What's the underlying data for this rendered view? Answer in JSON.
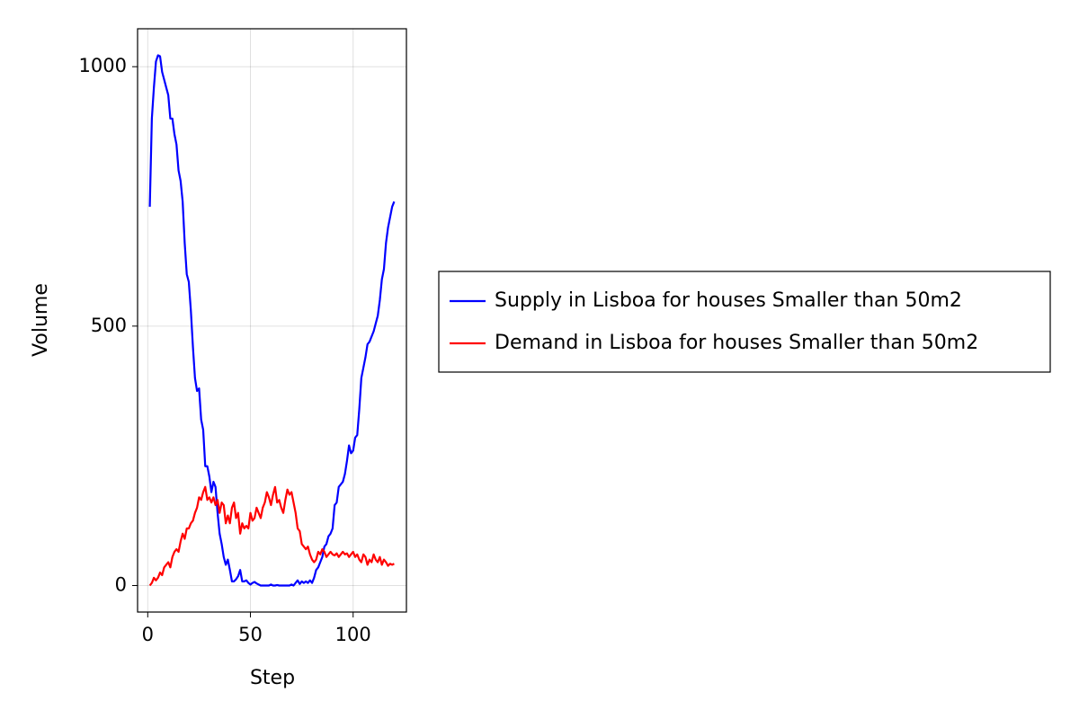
{
  "chart_data": {
    "type": "line",
    "x_label": "Step",
    "y_label": "Volume",
    "x": [
      1,
      2,
      3,
      4,
      5,
      6,
      7,
      8,
      9,
      10,
      11,
      12,
      13,
      14,
      15,
      16,
      17,
      18,
      19,
      20,
      21,
      22,
      23,
      24,
      25,
      26,
      27,
      28,
      29,
      30,
      31,
      32,
      33,
      34,
      35,
      36,
      37,
      38,
      39,
      40,
      41,
      42,
      43,
      44,
      45,
      46,
      47,
      48,
      49,
      50,
      51,
      52,
      53,
      54,
      55,
      56,
      57,
      58,
      59,
      60,
      61,
      62,
      63,
      64,
      65,
      66,
      67,
      68,
      69,
      70,
      71,
      72,
      73,
      74,
      75,
      76,
      77,
      78,
      79,
      80,
      81,
      82,
      83,
      84,
      85,
      86,
      87,
      88,
      89,
      90,
      91,
      92,
      93,
      94,
      95,
      96,
      97,
      98,
      99,
      100,
      101,
      102,
      103,
      104,
      105,
      106,
      107,
      108,
      109,
      110,
      111,
      112,
      113,
      114,
      115,
      116,
      117,
      118,
      119,
      120
    ],
    "series": [
      {
        "name": "Supply in Lisboa for houses Smaller than 50m2",
        "color": "#0000ff",
        "values": [
          730,
          900,
          960,
          1010,
          1022,
          1020,
          990,
          975,
          960,
          945,
          900,
          900,
          870,
          850,
          800,
          780,
          740,
          660,
          600,
          585,
          530,
          460,
          400,
          375,
          380,
          320,
          300,
          230,
          230,
          210,
          180,
          200,
          190,
          140,
          100,
          80,
          55,
          40,
          50,
          30,
          8,
          8,
          12,
          18,
          30,
          8,
          8,
          10,
          5,
          2,
          5,
          7,
          4,
          2,
          0,
          0,
          0,
          0,
          0,
          2,
          0,
          0,
          1,
          0,
          0,
          0,
          0,
          0,
          0,
          2,
          0,
          5,
          10,
          3,
          8,
          5,
          8,
          5,
          10,
          5,
          15,
          30,
          35,
          45,
          55,
          75,
          80,
          95,
          100,
          110,
          155,
          160,
          190,
          195,
          200,
          215,
          240,
          270,
          255,
          260,
          285,
          290,
          340,
          400,
          420,
          440,
          465,
          470,
          480,
          490,
          505,
          520,
          550,
          590,
          610,
          660,
          690,
          710,
          730,
          740
        ]
      },
      {
        "name": "Demand in Lisboa for houses Smaller than 50m2",
        "color": "#ff0000",
        "values": [
          0,
          5,
          15,
          10,
          15,
          25,
          20,
          35,
          40,
          45,
          35,
          55,
          65,
          70,
          65,
          85,
          100,
          90,
          110,
          110,
          120,
          125,
          140,
          150,
          170,
          165,
          180,
          190,
          165,
          170,
          160,
          170,
          155,
          165,
          140,
          160,
          155,
          120,
          135,
          120,
          150,
          160,
          130,
          140,
          100,
          120,
          110,
          115,
          110,
          140,
          125,
          130,
          150,
          140,
          130,
          150,
          160,
          180,
          170,
          155,
          175,
          190,
          160,
          165,
          150,
          140,
          165,
          185,
          175,
          180,
          160,
          140,
          110,
          105,
          80,
          75,
          70,
          75,
          60,
          50,
          45,
          50,
          65,
          60,
          70,
          65,
          55,
          60,
          65,
          60,
          58,
          62,
          55,
          60,
          65,
          60,
          62,
          55,
          60,
          65,
          55,
          60,
          50,
          45,
          60,
          55,
          40,
          50,
          45,
          60,
          50,
          45,
          55,
          40,
          50,
          45,
          38,
          42,
          40,
          42
        ]
      }
    ],
    "xlim": [
      -4.95,
      125.95
    ],
    "xticks": [
      0,
      50,
      100
    ],
    "ylim": [
      -51.1,
      1073.1
    ],
    "yticks": [
      0,
      500,
      1000
    ],
    "grid": true,
    "legend": "right"
  }
}
